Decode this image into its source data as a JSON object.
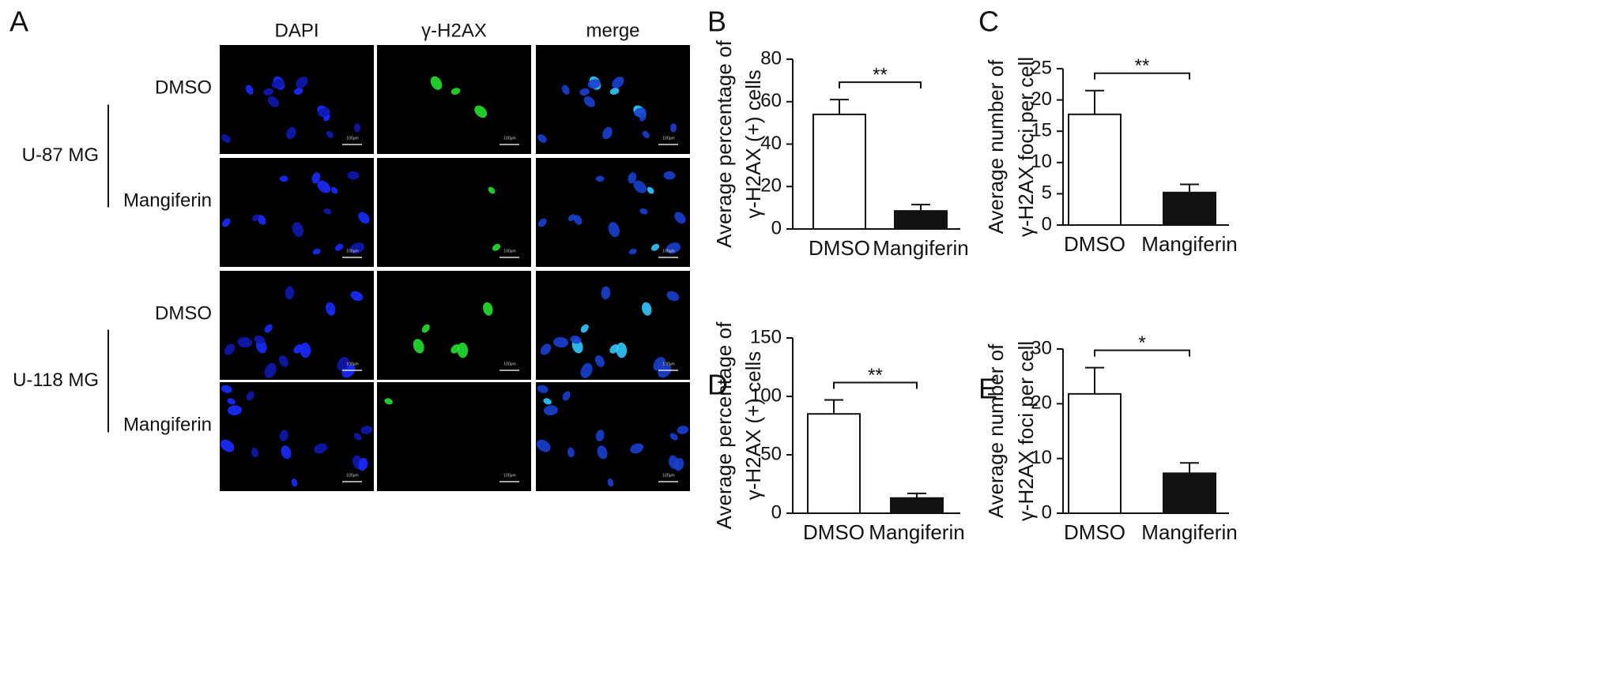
{
  "image_panel": {
    "label": "A",
    "columns": [
      "DAPI",
      "γ-H2AX",
      "merge"
    ],
    "groups": [
      {
        "name": "U-87 MG",
        "rows": [
          "DMSO",
          "Mangiferin"
        ]
      },
      {
        "name": "U-118 MG",
        "rows": [
          "DMSO",
          "Mangiferin"
        ]
      }
    ],
    "scale_bar": "100μm"
  },
  "chart_data": [
    {
      "type": "bar",
      "label": "B",
      "ylabel": [
        "Average percentage of",
        "γ-H2AX (+) cells"
      ],
      "categories": [
        "DMSO",
        "Mangiferin"
      ],
      "values": [
        54,
        8.5
      ],
      "errors": [
        7,
        3
      ],
      "colors": [
        "#ffffff",
        "#111111"
      ],
      "ylim": [
        0,
        80
      ],
      "yticks": [
        0,
        20,
        40,
        60,
        80
      ],
      "significance": "**"
    },
    {
      "type": "bar",
      "label": "C",
      "ylabel": [
        "Average number of",
        "γ-H2AX foci per cell"
      ],
      "categories": [
        "DMSO",
        "Mangiferin"
      ],
      "values": [
        17.7,
        5.2
      ],
      "errors": [
        3.8,
        1.3
      ],
      "colors": [
        "#ffffff",
        "#111111"
      ],
      "ylim": [
        0,
        25
      ],
      "yticks": [
        0,
        5,
        10,
        15,
        20,
        25
      ],
      "significance": "**"
    },
    {
      "type": "bar",
      "label": "D",
      "ylabel": [
        "Average percentage of",
        "γ-H2AX (+) cells"
      ],
      "categories": [
        "DMSO",
        "Mangiferin"
      ],
      "values": [
        85,
        13
      ],
      "errors": [
        12,
        4
      ],
      "colors": [
        "#ffffff",
        "#111111"
      ],
      "ylim": [
        0,
        150
      ],
      "yticks": [
        0,
        50,
        100,
        150
      ],
      "significance": "**"
    },
    {
      "type": "bar",
      "label": "E",
      "ylabel": [
        "Average number of",
        "γ-H2AX foci per cell"
      ],
      "categories": [
        "DMSO",
        "Mangiferin"
      ],
      "values": [
        21.8,
        7.3
      ],
      "errors": [
        4.8,
        1.9
      ],
      "colors": [
        "#ffffff",
        "#111111"
      ],
      "ylim": [
        0,
        30
      ],
      "yticks": [
        0,
        10,
        20,
        30
      ],
      "significance": "*"
    }
  ]
}
